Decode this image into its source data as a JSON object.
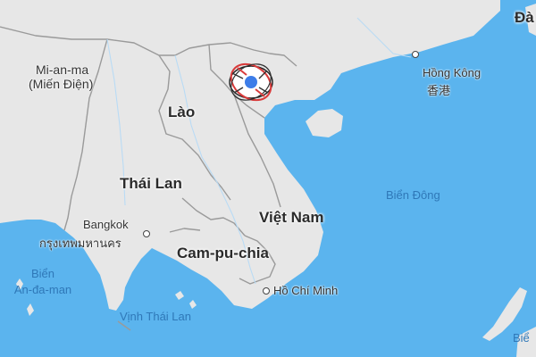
{
  "map": {
    "countries": {
      "myanmar": "Mi-an-ma",
      "myanmar_alt": "(Miến Điện)",
      "laos": "Lào",
      "thailand": "Thái Lan",
      "vietnam": "Việt Nam",
      "cambodia": "Cam-pu-chia",
      "top_right_partial": "Đà"
    },
    "cities": {
      "hong_kong": "Hồng Kông",
      "hong_kong_native": "香港",
      "bangkok": "Bangkok",
      "bangkok_native": "กรุงเทพมหานคร",
      "hcmc": "Hồ Chí Minh"
    },
    "water": {
      "east_sea": "Biển Đông",
      "andaman_line1": "Biển",
      "andaman_line2": "An-đa-man",
      "gulf_thailand": "Vịnh Thái Lan",
      "bottom_right_partial": "Biể"
    },
    "colors": {
      "water": "#5bb4ee",
      "land": "#e7e7e7",
      "border": "#9a9a9a",
      "location_dot": "#3d7de8"
    },
    "marker_icon": "location-marker-icon"
  }
}
